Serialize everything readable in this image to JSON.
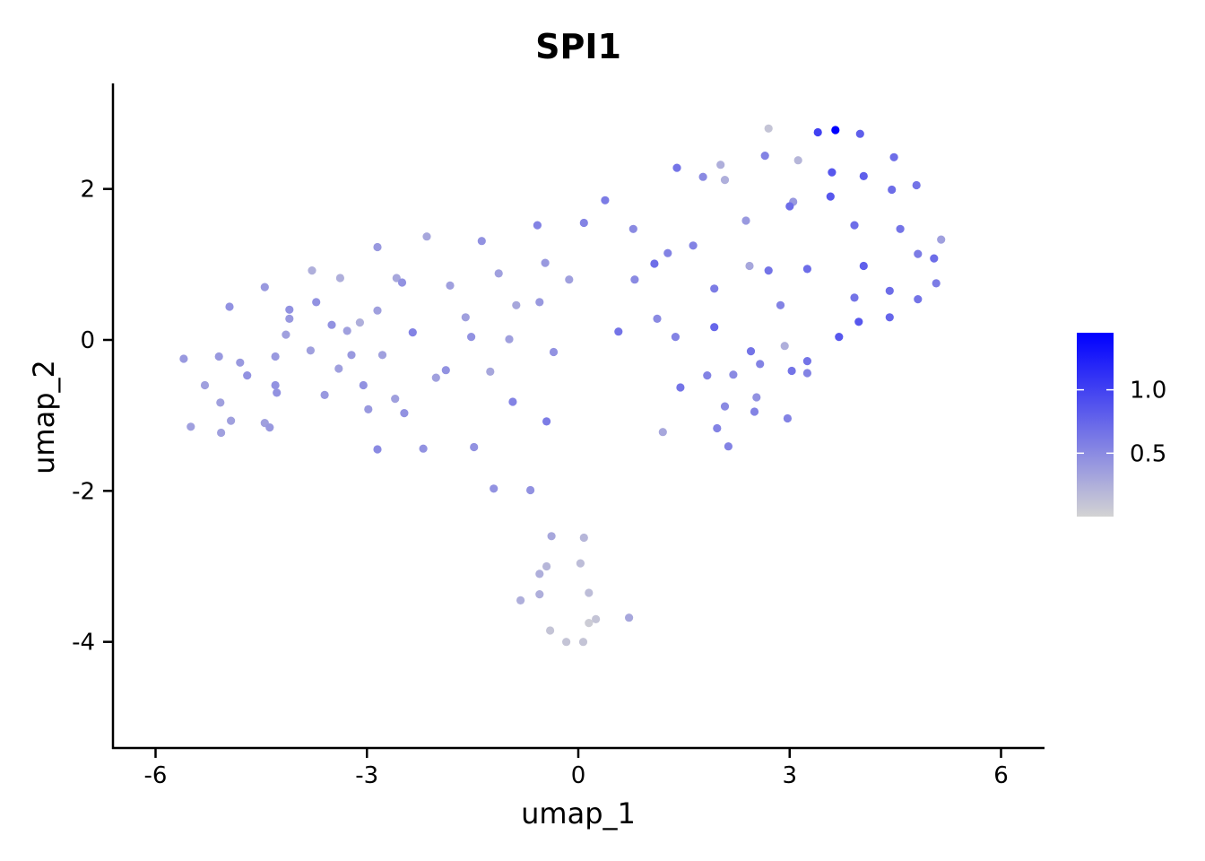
{
  "chart_data": {
    "type": "scatter",
    "title": "SPI1",
    "xlabel": "umap_1",
    "ylabel": "umap_2",
    "xlim": [
      -6.6,
      6.6
    ],
    "ylim": [
      -5.4,
      3.4
    ],
    "x_ticks": [
      -6,
      -3,
      0,
      3,
      6
    ],
    "x_tick_labels": [
      "-6",
      "-3",
      "0",
      "3",
      "6"
    ],
    "y_ticks": [
      -4,
      -2,
      0,
      2
    ],
    "y_tick_labels": [
      "-4",
      "-2",
      "0",
      "2"
    ],
    "grid": false,
    "legend": {
      "placement": "right",
      "min": 0.0,
      "max": 1.45,
      "ticks": [
        0.5,
        1.0
      ],
      "tick_labels": [
        "0.5",
        "1.0"
      ]
    },
    "color_low": "#d3d3d3",
    "color_high": "#0000ff",
    "points": [
      [
        3.65,
        2.78,
        1.45
      ],
      [
        3.4,
        2.75,
        1.0
      ],
      [
        4.0,
        2.73,
        0.8
      ],
      [
        2.7,
        2.8,
        0.1
      ],
      [
        1.4,
        2.28,
        0.65
      ],
      [
        2.65,
        2.44,
        0.55
      ],
      [
        3.12,
        2.38,
        0.2
      ],
      [
        2.02,
        2.32,
        0.25
      ],
      [
        3.6,
        2.22,
        0.85
      ],
      [
        4.05,
        2.17,
        0.8
      ],
      [
        1.77,
        2.16,
        0.5
      ],
      [
        2.08,
        2.12,
        0.25
      ],
      [
        4.48,
        2.42,
        0.7
      ],
      [
        4.8,
        2.05,
        0.65
      ],
      [
        4.45,
        1.99,
        0.7
      ],
      [
        3.58,
        1.9,
        0.85
      ],
      [
        0.38,
        1.85,
        0.6
      ],
      [
        3.05,
        1.83,
        0.4
      ],
      [
        3.0,
        1.77,
        0.7
      ],
      [
        2.38,
        1.58,
        0.4
      ],
      [
        3.92,
        1.52,
        0.7
      ],
      [
        4.57,
        1.47,
        0.65
      ],
      [
        0.08,
        1.55,
        0.55
      ],
      [
        0.78,
        1.47,
        0.5
      ],
      [
        -0.58,
        1.52,
        0.55
      ],
      [
        -1.37,
        1.31,
        0.45
      ],
      [
        -2.15,
        1.37,
        0.3
      ],
      [
        -2.85,
        1.23,
        0.4
      ],
      [
        1.63,
        1.25,
        0.55
      ],
      [
        1.27,
        1.15,
        0.55
      ],
      [
        4.82,
        1.14,
        0.6
      ],
      [
        5.05,
        1.08,
        0.7
      ],
      [
        5.15,
        1.33,
        0.35
      ],
      [
        1.08,
        1.01,
        0.7
      ],
      [
        -0.47,
        1.02,
        0.4
      ],
      [
        2.43,
        0.98,
        0.3
      ],
      [
        2.7,
        0.92,
        0.65
      ],
      [
        3.25,
        0.94,
        0.7
      ],
      [
        4.05,
        0.98,
        0.8
      ],
      [
        -1.13,
        0.88,
        0.35
      ],
      [
        -3.78,
        0.92,
        0.25
      ],
      [
        -2.58,
        0.82,
        0.3
      ],
      [
        -2.5,
        0.76,
        0.45
      ],
      [
        -3.38,
        0.82,
        0.25
      ],
      [
        -0.13,
        0.8,
        0.35
      ],
      [
        0.8,
        0.8,
        0.5
      ],
      [
        -1.82,
        0.72,
        0.35
      ],
      [
        -4.45,
        0.7,
        0.4
      ],
      [
        1.93,
        0.68,
        0.6
      ],
      [
        5.08,
        0.75,
        0.6
      ],
      [
        4.42,
        0.65,
        0.7
      ],
      [
        3.92,
        0.56,
        0.65
      ],
      [
        4.82,
        0.54,
        0.65
      ],
      [
        -3.72,
        0.5,
        0.45
      ],
      [
        -0.55,
        0.5,
        0.4
      ],
      [
        -0.88,
        0.46,
        0.3
      ],
      [
        2.87,
        0.46,
        0.55
      ],
      [
        -4.95,
        0.44,
        0.45
      ],
      [
        -4.1,
        0.4,
        0.45
      ],
      [
        -2.85,
        0.39,
        0.35
      ],
      [
        -4.1,
        0.28,
        0.4
      ],
      [
        -1.6,
        0.3,
        0.35
      ],
      [
        -3.1,
        0.23,
        0.25
      ],
      [
        -3.5,
        0.2,
        0.45
      ],
      [
        1.12,
        0.28,
        0.5
      ],
      [
        3.98,
        0.24,
        0.85
      ],
      [
        4.42,
        0.3,
        0.75
      ],
      [
        1.93,
        0.17,
        0.75
      ],
      [
        -3.28,
        0.12,
        0.35
      ],
      [
        -2.35,
        0.1,
        0.55
      ],
      [
        -4.15,
        0.07,
        0.35
      ],
      [
        0.57,
        0.11,
        0.65
      ],
      [
        -1.52,
        0.04,
        0.45
      ],
      [
        -0.98,
        0.01,
        0.35
      ],
      [
        1.38,
        0.04,
        0.55
      ],
      [
        3.7,
        0.04,
        0.85
      ],
      [
        -3.8,
        -0.14,
        0.35
      ],
      [
        -0.35,
        -0.16,
        0.45
      ],
      [
        2.45,
        -0.15,
        0.65
      ],
      [
        2.93,
        -0.08,
        0.25
      ],
      [
        -5.6,
        -0.25,
        0.4
      ],
      [
        -5.1,
        -0.22,
        0.4
      ],
      [
        -4.8,
        -0.3,
        0.4
      ],
      [
        -4.3,
        -0.22,
        0.4
      ],
      [
        -3.22,
        -0.2,
        0.4
      ],
      [
        -2.78,
        -0.2,
        0.35
      ],
      [
        3.25,
        -0.28,
        0.65
      ],
      [
        2.58,
        -0.32,
        0.55
      ],
      [
        -3.4,
        -0.38,
        0.35
      ],
      [
        -1.88,
        -0.4,
        0.45
      ],
      [
        -1.25,
        -0.42,
        0.3
      ],
      [
        -4.7,
        -0.47,
        0.45
      ],
      [
        -2.02,
        -0.5,
        0.35
      ],
      [
        1.83,
        -0.47,
        0.55
      ],
      [
        2.2,
        -0.46,
        0.5
      ],
      [
        3.03,
        -0.41,
        0.65
      ],
      [
        3.25,
        -0.44,
        0.55
      ],
      [
        -5.3,
        -0.6,
        0.35
      ],
      [
        -4.3,
        -0.6,
        0.45
      ],
      [
        -3.05,
        -0.6,
        0.45
      ],
      [
        1.45,
        -0.63,
        0.65
      ],
      [
        -4.28,
        -0.7,
        0.45
      ],
      [
        -3.6,
        -0.73,
        0.4
      ],
      [
        -2.6,
        -0.78,
        0.35
      ],
      [
        2.53,
        -0.76,
        0.45
      ],
      [
        -5.08,
        -0.83,
        0.35
      ],
      [
        -0.93,
        -0.82,
        0.55
      ],
      [
        2.08,
        -0.88,
        0.5
      ],
      [
        -2.98,
        -0.92,
        0.4
      ],
      [
        -2.47,
        -0.97,
        0.45
      ],
      [
        2.5,
        -0.95,
        0.55
      ],
      [
        2.97,
        -1.04,
        0.55
      ],
      [
        -4.93,
        -1.07,
        0.35
      ],
      [
        -4.45,
        -1.1,
        0.35
      ],
      [
        -0.45,
        -1.08,
        0.6
      ],
      [
        -5.5,
        -1.15,
        0.35
      ],
      [
        -4.38,
        -1.16,
        0.4
      ],
      [
        1.97,
        -1.17,
        0.55
      ],
      [
        -5.07,
        -1.23,
        0.35
      ],
      [
        1.2,
        -1.22,
        0.3
      ],
      [
        -2.85,
        -1.45,
        0.5
      ],
      [
        -2.2,
        -1.44,
        0.45
      ],
      [
        -1.48,
        -1.42,
        0.45
      ],
      [
        2.13,
        -1.41,
        0.55
      ],
      [
        -1.2,
        -1.97,
        0.45
      ],
      [
        -0.68,
        -1.99,
        0.45
      ],
      [
        -0.38,
        -2.6,
        0.3
      ],
      [
        0.08,
        -2.62,
        0.2
      ],
      [
        -0.45,
        -3.0,
        0.2
      ],
      [
        0.03,
        -2.96,
        0.15
      ],
      [
        -0.55,
        -3.1,
        0.25
      ],
      [
        0.72,
        -3.68,
        0.3
      ],
      [
        0.15,
        -3.35,
        0.15
      ],
      [
        -0.55,
        -3.37,
        0.25
      ],
      [
        -0.82,
        -3.45,
        0.25
      ],
      [
        0.25,
        -3.7,
        0.1
      ],
      [
        0.15,
        -3.75,
        0.05
      ],
      [
        -0.4,
        -3.85,
        0.1
      ],
      [
        -0.17,
        -4.0,
        0.1
      ],
      [
        0.07,
        -4.0,
        0.1
      ]
    ]
  }
}
